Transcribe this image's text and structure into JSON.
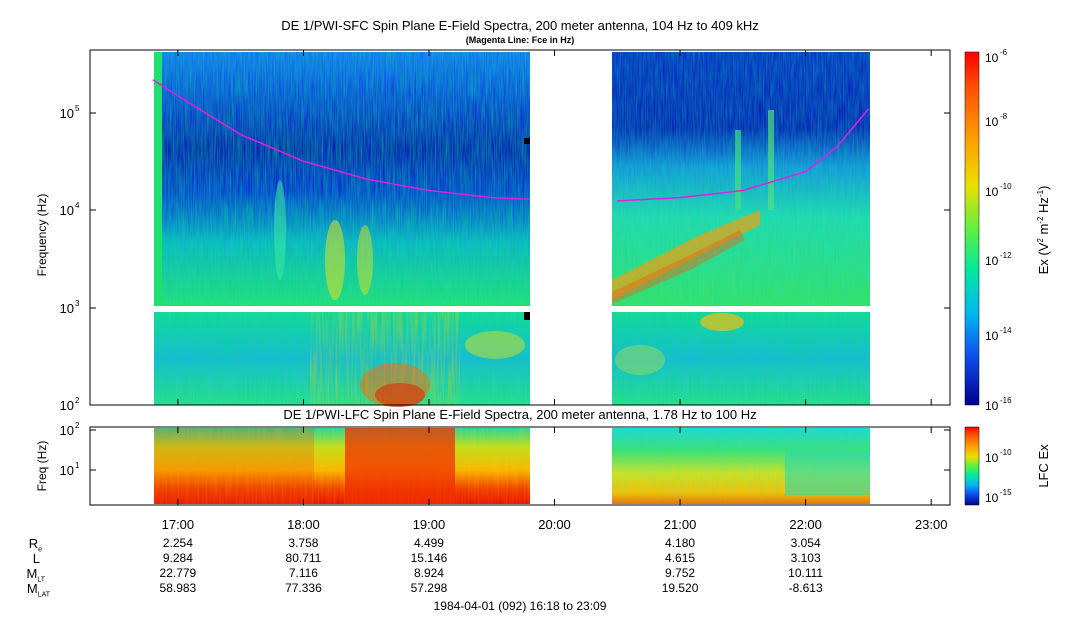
{
  "top_panel": {
    "title": "DE 1/PWI-SFC  Spin Plane E-Field Spectra, 200 meter antenna, 104 Hz to 409 kHz",
    "subtitle": "(Magenta Line: Fce in Hz)",
    "ylabel": "Frequency (Hz)",
    "y_ticks": [
      {
        "base": "10",
        "exp": "2",
        "value": 100
      },
      {
        "base": "10",
        "exp": "3",
        "value": 1000
      },
      {
        "base": "10",
        "exp": "4",
        "value": 10000
      },
      {
        "base": "10",
        "exp": "5",
        "value": 100000
      }
    ],
    "colorbar": {
      "label": "Ex (V2 m-2 Hz-1)",
      "label_parts": {
        "a": "Ex (V",
        "b": "2",
        "c": " m",
        "d": "-2",
        "e": " Hz",
        "f": "-1",
        "g": ")"
      },
      "ticks": [
        {
          "base": "10",
          "exp": "-6",
          "value": 1e-06
        },
        {
          "base": "10",
          "exp": "-8",
          "value": 1e-08
        },
        {
          "base": "10",
          "exp": "-10",
          "value": 1e-10
        },
        {
          "base": "10",
          "exp": "-12",
          "value": 1e-12
        },
        {
          "base": "10",
          "exp": "-14",
          "value": 1e-14
        },
        {
          "base": "10",
          "exp": "-16",
          "value": 1e-16
        }
      ],
      "range": [
        1e-16,
        1e-06
      ],
      "scale": "log"
    }
  },
  "bottom_panel": {
    "title": "DE 1/PWI-LFC  Spin Plane E-Field Spectra, 200 meter antenna, 1.78 Hz to 100 Hz",
    "ylabel": "Freq (Hz)",
    "y_ticks": [
      {
        "base": "10",
        "exp": "1",
        "value": 10
      },
      {
        "base": "10",
        "exp": "2",
        "value": 100
      }
    ],
    "colorbar": {
      "label": "LFC Ex",
      "ticks": [
        {
          "base": "10",
          "exp": "-10",
          "value": 1e-10
        },
        {
          "base": "10",
          "exp": "-15",
          "value": 1e-15
        }
      ]
    }
  },
  "x_axis": {
    "ticks": [
      "17:00",
      "18:00",
      "19:00",
      "20:00",
      "21:00",
      "22:00",
      "23:00"
    ],
    "range_label": "1984-04-01 (092) 16:18 to 23:09"
  },
  "ephemeris": {
    "rows": [
      {
        "name": "R",
        "sub": "e",
        "values": [
          "2.254",
          "3.758",
          "4.499",
          "",
          "4.180",
          "3.054",
          ""
        ]
      },
      {
        "name": "L",
        "sub": "",
        "values": [
          "9.284",
          "80.711",
          "15.146",
          "",
          "4.615",
          "3.103",
          ""
        ]
      },
      {
        "name": "M",
        "sub": "LT",
        "values": [
          "22.779",
          "7.116",
          "8.924",
          "",
          "9.752",
          "10.111",
          ""
        ]
      },
      {
        "name": "M",
        "sub": "LAT",
        "values": [
          "58.983",
          "77.336",
          "57.298",
          "",
          "19.520",
          "-8.613",
          ""
        ]
      }
    ]
  },
  "colors": {
    "fce_line": "#e020e0",
    "background": "#ffffff",
    "axis": "#000000"
  },
  "chart_data": [
    {
      "type": "heatmap",
      "title": "DE 1/PWI-SFC  Spin Plane E-Field Spectra, 200 meter antenna, 104 Hz to 409 kHz",
      "ylabel": "Frequency (Hz)",
      "yscale": "log",
      "ylim": [
        100,
        409000
      ],
      "xlim": [
        "16:18",
        "23:09"
      ],
      "data_segments": [
        {
          "start": "16:48",
          "end": "19:48"
        },
        {
          "start": "20:27",
          "end": "22:30"
        }
      ],
      "gap_band_hz": [
        900,
        1000
      ],
      "colorbar_range": [
        1e-16,
        1e-06
      ],
      "series": [
        {
          "name": "Fce",
          "segments": [
            {
              "time": [
                "16:48",
                "17:00",
                "17:30",
                "18:00",
                "18:30",
                "19:00",
                "19:30",
                "19:48"
              ],
              "freq": [
                220000,
                150000,
                60000,
                32000,
                21000,
                16000,
                13500,
                13000
              ]
            },
            {
              "time": [
                "20:30",
                "21:00",
                "21:30",
                "22:00",
                "22:15",
                "22:30"
              ],
              "freq": [
                12500,
                13500,
                16000,
                25000,
                45000,
                110000
              ]
            }
          ]
        }
      ]
    },
    {
      "type": "heatmap",
      "title": "DE 1/PWI-LFC  Spin Plane E-Field Spectra, 200 meter antenna, 1.78 Hz to 100 Hz",
      "ylabel": "Freq (Hz)",
      "yscale": "log",
      "ylim": [
        1.78,
        100
      ],
      "xlim": [
        "16:18",
        "23:09"
      ],
      "data_segments": [
        {
          "start": "16:48",
          "end": "19:48"
        },
        {
          "start": "20:27",
          "end": "22:30"
        }
      ]
    }
  ]
}
